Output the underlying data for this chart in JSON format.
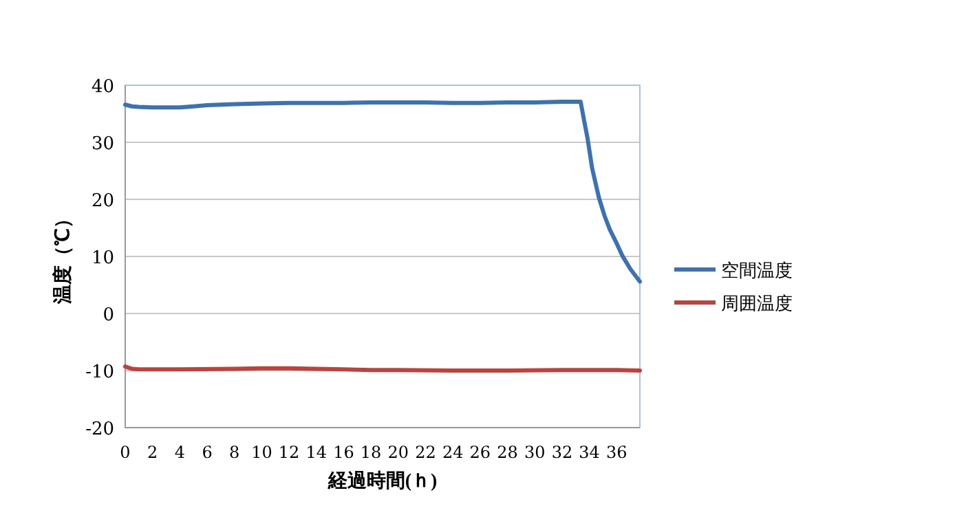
{
  "chart_data": {
    "type": "line",
    "xlabel": "経過時間(ｈ)",
    "ylabel": "温度（℃）",
    "xlim": [
      0,
      37.7
    ],
    "ylim": [
      -20,
      40
    ],
    "xticks": [
      0,
      2,
      4,
      6,
      8,
      10,
      12,
      14,
      16,
      18,
      20,
      22,
      24,
      26,
      28,
      30,
      32,
      34,
      36
    ],
    "yticks": [
      -20,
      -10,
      0,
      10,
      20,
      30,
      40
    ],
    "grid": "y",
    "legend": "right",
    "series": [
      {
        "name": "空間温度",
        "color": "#3b72b4",
        "x": [
          0,
          0.5,
          1,
          2,
          3,
          4,
          5,
          6,
          7,
          8,
          10,
          12,
          14,
          16,
          18,
          20,
          22,
          24,
          26,
          28,
          30,
          32,
          33,
          33.36,
          33.6,
          33.86,
          34.2,
          34.7,
          35.1,
          35.5,
          36,
          36.4,
          37,
          37.7
        ],
        "values": [
          36.6,
          36.3,
          36.2,
          36.1,
          36.1,
          36.1,
          36.3,
          36.5,
          36.6,
          36.7,
          36.8,
          36.9,
          36.9,
          36.9,
          37,
          37,
          37,
          36.9,
          36.9,
          37,
          37,
          37.1,
          37.1,
          37.1,
          34,
          30.8,
          25.5,
          20.3,
          17.2,
          14.7,
          12.3,
          10.2,
          7.8,
          5.6
        ]
      },
      {
        "name": "周囲温度",
        "color": "#c0413c",
        "x": [
          0,
          0.5,
          1,
          4,
          8,
          10,
          12,
          14,
          16,
          18,
          20,
          24,
          28,
          32,
          36,
          37.7
        ],
        "values": [
          -9.3,
          -9.7,
          -9.8,
          -9.8,
          -9.7,
          -9.6,
          -9.6,
          -9.7,
          -9.8,
          -9.9,
          -9.9,
          -10,
          -10,
          -9.9,
          -9.9,
          -10
        ]
      }
    ]
  }
}
